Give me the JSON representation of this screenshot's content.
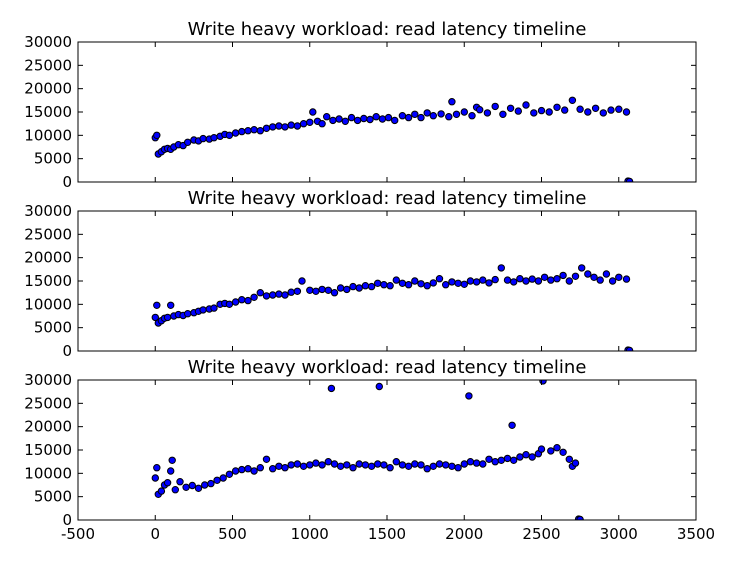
{
  "chart_data": [
    {
      "type": "scatter",
      "title": "Write heavy workload: read latency timeline",
      "xlim": [
        -500,
        3500
      ],
      "ylim": [
        0,
        30000
      ],
      "xticks": [
        "-500",
        "0",
        "500",
        "1000",
        "1500",
        "2000",
        "2500",
        "3000",
        "3500"
      ],
      "yticks": [
        "0",
        "5000",
        "10000",
        "15000",
        "20000",
        "25000",
        "30000"
      ],
      "show_xtick_labels": false,
      "point_color": "#0000ff",
      "series": [
        {
          "x": [
            0,
            10,
            20,
            40,
            60,
            80,
            100,
            120,
            150,
            180,
            210,
            250,
            280,
            310,
            350,
            380,
            420,
            450,
            480,
            520,
            560,
            600,
            640,
            680,
            720,
            760,
            800,
            840,
            880,
            920,
            960,
            1000,
            1020,
            1050,
            1080,
            1110,
            1150,
            1190,
            1230,
            1270,
            1310,
            1350,
            1390,
            1430,
            1470,
            1510,
            1550,
            1600,
            1640,
            1680,
            1720,
            1760,
            1800,
            1850,
            1900,
            1920,
            1950,
            2000,
            2050,
            2080,
            2100,
            2150,
            2200,
            2250,
            2300,
            2350,
            2400,
            2450,
            2500,
            2550,
            2600,
            2650,
            2700,
            2750,
            2800,
            2850,
            2900,
            2950,
            3000,
            3050,
            3060,
            3070
          ],
          "y": [
            9500,
            10000,
            6000,
            6500,
            7000,
            7200,
            7000,
            7500,
            8000,
            7800,
            8500,
            9000,
            8800,
            9300,
            9200,
            9500,
            9800,
            10200,
            10000,
            10500,
            10800,
            11000,
            11200,
            11000,
            11500,
            11800,
            12000,
            11800,
            12200,
            12000,
            12500,
            12800,
            15000,
            13000,
            12500,
            14000,
            13200,
            13500,
            13000,
            13800,
            13200,
            13600,
            13400,
            14000,
            13500,
            13800,
            13200,
            14200,
            13800,
            14500,
            13800,
            14800,
            14200,
            14600,
            14000,
            17200,
            14500,
            15000,
            14200,
            16000,
            15500,
            14800,
            16200,
            14500,
            15800,
            15200,
            16500,
            14800,
            15300,
            15000,
            16000,
            15400,
            17500,
            15600,
            15000,
            15800,
            14800,
            15400,
            15600,
            15000,
            200,
            100
          ]
        }
      ]
    },
    {
      "type": "scatter",
      "title": "Write heavy workload: read latency timeline",
      "xlim": [
        -500,
        3500
      ],
      "ylim": [
        0,
        30000
      ],
      "xticks": [
        "-500",
        "0",
        "500",
        "1000",
        "1500",
        "2000",
        "2500",
        "3000",
        "3500"
      ],
      "yticks": [
        "0",
        "5000",
        "10000",
        "15000",
        "20000",
        "25000",
        "30000"
      ],
      "show_xtick_labels": false,
      "point_color": "#0000ff",
      "series": [
        {
          "x": [
            0,
            10,
            20,
            40,
            60,
            80,
            100,
            120,
            150,
            180,
            210,
            250,
            280,
            310,
            350,
            380,
            420,
            450,
            480,
            520,
            560,
            600,
            640,
            680,
            720,
            760,
            800,
            840,
            880,
            920,
            950,
            1000,
            1040,
            1080,
            1120,
            1160,
            1200,
            1240,
            1280,
            1320,
            1360,
            1400,
            1440,
            1480,
            1520,
            1560,
            1600,
            1640,
            1680,
            1720,
            1760,
            1800,
            1840,
            1880,
            1920,
            1960,
            2000,
            2040,
            2080,
            2120,
            2160,
            2200,
            2240,
            2280,
            2320,
            2360,
            2400,
            2440,
            2480,
            2520,
            2560,
            2600,
            2640,
            2680,
            2720,
            2760,
            2800,
            2840,
            2880,
            2920,
            2960,
            3000,
            3050,
            3060,
            3070
          ],
          "y": [
            7200,
            9800,
            6000,
            6500,
            7000,
            7200,
            9800,
            7500,
            7800,
            7600,
            8000,
            8200,
            8500,
            8800,
            9000,
            9200,
            10000,
            10200,
            10000,
            10500,
            11000,
            10800,
            11500,
            12500,
            11800,
            12000,
            12200,
            12000,
            12600,
            12800,
            15000,
            13000,
            12800,
            13200,
            13000,
            12500,
            13500,
            13200,
            13800,
            13500,
            14000,
            13800,
            14500,
            14200,
            14000,
            15200,
            14500,
            14200,
            15000,
            14400,
            14000,
            14600,
            15500,
            14200,
            14800,
            14500,
            14300,
            15000,
            14800,
            15200,
            14600,
            15300,
            17800,
            15200,
            14800,
            15500,
            15000,
            15400,
            15000,
            15800,
            15200,
            15500,
            16200,
            15000,
            16000,
            17800,
            16500,
            15800,
            15200,
            16500,
            15000,
            15800,
            15400,
            200,
            100
          ]
        }
      ]
    },
    {
      "type": "scatter",
      "title": "Write heavy workload: read latency timeline",
      "xlim": [
        -500,
        3500
      ],
      "ylim": [
        0,
        30000
      ],
      "xticks": [
        "-500",
        "0",
        "500",
        "1000",
        "1500",
        "2000",
        "2500",
        "3000",
        "3500"
      ],
      "yticks": [
        "0",
        "5000",
        "10000",
        "15000",
        "20000",
        "25000",
        "30000"
      ],
      "show_xtick_labels": true,
      "point_color": "#0000ff",
      "series": [
        {
          "x": [
            0,
            10,
            20,
            40,
            60,
            80,
            100,
            110,
            130,
            160,
            200,
            240,
            280,
            320,
            360,
            400,
            440,
            480,
            520,
            560,
            600,
            640,
            680,
            720,
            760,
            800,
            840,
            880,
            920,
            960,
            1000,
            1040,
            1080,
            1120,
            1140,
            1160,
            1200,
            1240,
            1280,
            1320,
            1360,
            1400,
            1440,
            1450,
            1480,
            1520,
            1560,
            1600,
            1640,
            1680,
            1720,
            1760,
            1800,
            1840,
            1880,
            1920,
            1960,
            2000,
            2030,
            2040,
            2080,
            2120,
            2160,
            2200,
            2240,
            2280,
            2310,
            2320,
            2360,
            2400,
            2440,
            2480,
            2500,
            2510,
            2560,
            2600,
            2640,
            2680,
            2700,
            2720,
            2740,
            2750
          ],
          "y": [
            9000,
            11200,
            5500,
            6200,
            7500,
            8000,
            10500,
            12800,
            6500,
            8200,
            7000,
            7400,
            6800,
            7500,
            7800,
            8500,
            9000,
            9800,
            10500,
            10800,
            11000,
            10500,
            11200,
            13000,
            11000,
            11500,
            11200,
            11800,
            12000,
            11500,
            11800,
            12200,
            11800,
            12500,
            28200,
            12000,
            11500,
            11800,
            11200,
            12000,
            11800,
            11500,
            12000,
            28600,
            11800,
            11200,
            12500,
            11800,
            11500,
            12000,
            11800,
            11000,
            11500,
            12000,
            11800,
            11500,
            11200,
            12000,
            26600,
            12500,
            12200,
            12000,
            13000,
            12500,
            12800,
            13200,
            20300,
            12800,
            13500,
            14000,
            13500,
            14200,
            15200,
            29800,
            14800,
            15500,
            14500,
            13000,
            11500,
            12200,
            200,
            100
          ]
        }
      ]
    }
  ]
}
